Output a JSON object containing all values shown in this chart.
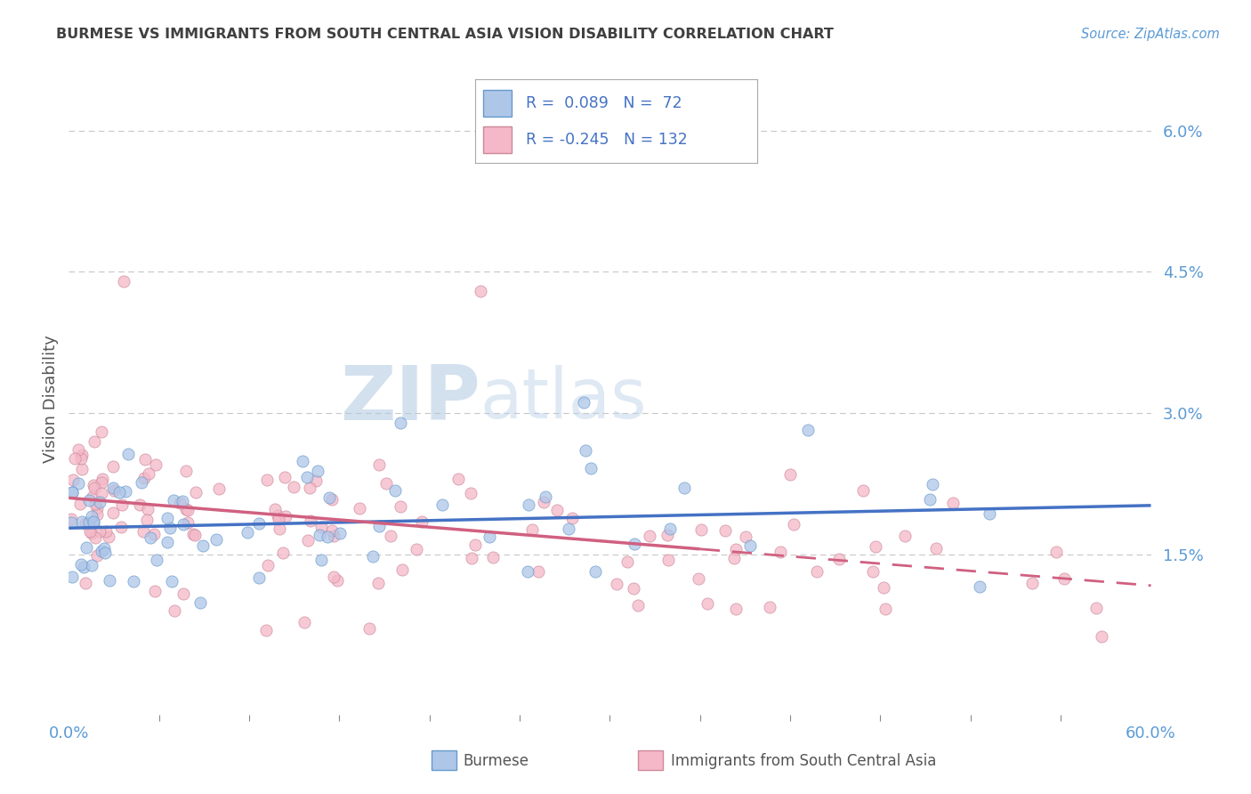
{
  "title": "BURMESE VS IMMIGRANTS FROM SOUTH CENTRAL ASIA VISION DISABILITY CORRELATION CHART",
  "source": "Source: ZipAtlas.com",
  "ylabel": "Vision Disability",
  "xmin": 0.0,
  "xmax": 0.6,
  "ymin": -0.002,
  "ymax": 0.065,
  "yticks": [
    0.0,
    0.015,
    0.03,
    0.045,
    0.06
  ],
  "ytick_labels": [
    "",
    "1.5%",
    "3.0%",
    "4.5%",
    "6.0%"
  ],
  "xtick_labels": [
    "0.0%",
    "60.0%"
  ],
  "burmese": {
    "color": "#aec6e8",
    "edge_color": "#6699cc",
    "line_color": "#4472c4",
    "R": 0.089,
    "N": 72,
    "intercept": 0.0178,
    "slope": 0.004
  },
  "sca": {
    "color": "#f4b8c8",
    "edge_color": "#cc8899",
    "line_color": "#d06080",
    "R": -0.245,
    "N": 132,
    "intercept": 0.021,
    "slope": -0.0155
  },
  "watermark_zip": "ZIP",
  "watermark_atlas": "atlas",
  "bg_color": "#ffffff",
  "grid_color": "#c8c8c8",
  "title_color": "#404040",
  "tick_color": "#5b9bd5",
  "ylabel_color": "#555555",
  "source_color": "#5b9bd5",
  "legend_color": "#4472c4",
  "bottom_label_color": "#555555"
}
